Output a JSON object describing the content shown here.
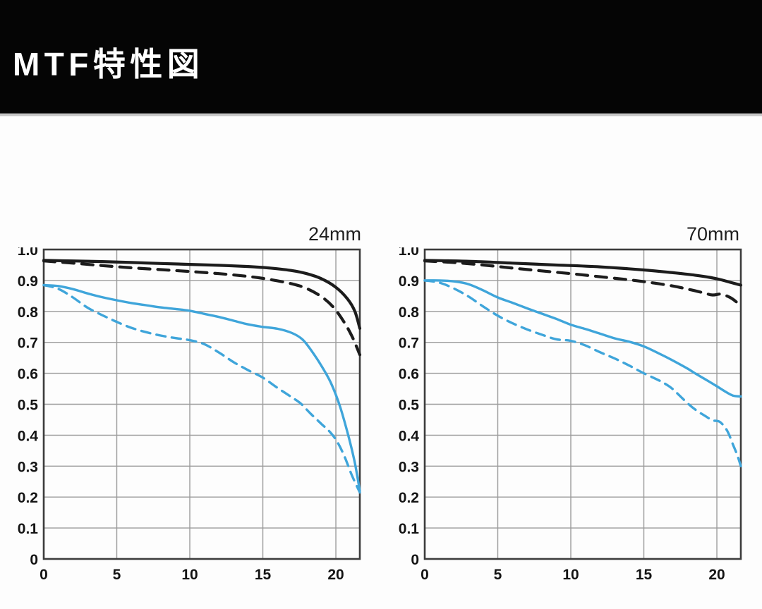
{
  "header": {
    "title": "MTF特性図"
  },
  "colors": {
    "header_bg": "#050505",
    "header_fg": "#ffffff",
    "grid": "#9b9b9b",
    "plot_border": "#3d3d3d",
    "black_curve": "#1c1c1c",
    "blue_curve": "#3fa5da"
  },
  "chart_data": [
    {
      "type": "line",
      "title": "24mm",
      "xlabel": "",
      "ylabel": "",
      "xlim": [
        0,
        21.64
      ],
      "ylim": [
        0,
        1.0
      ],
      "grid": true,
      "x_ticks": [
        0,
        5,
        10,
        15,
        20
      ],
      "x_tick_labels": [
        "0",
        "5",
        "10",
        "15",
        "20"
      ],
      "y_ticks": [
        0,
        0.1,
        0.2,
        0.3,
        0.4,
        0.5,
        0.6,
        0.7,
        0.8,
        0.9,
        1.0
      ],
      "y_tick_labels": [
        "0",
        "0.1",
        "0.2",
        "0.3",
        "0.4",
        "0.5",
        "0.6",
        "0.7",
        "0.8",
        "0.9",
        "1.0"
      ],
      "series": [
        {
          "name": "black-solid",
          "color": "#1c1c1c",
          "dash": "solid",
          "stroke_width": 4.2,
          "points": [
            [
              0,
              0.965
            ],
            [
              2,
              0.963
            ],
            [
              4,
              0.961
            ],
            [
              6,
              0.958
            ],
            [
              8,
              0.955
            ],
            [
              10,
              0.952
            ],
            [
              12,
              0.949
            ],
            [
              14,
              0.945
            ],
            [
              15.5,
              0.94
            ],
            [
              17,
              0.932
            ],
            [
              18,
              0.922
            ],
            [
              19,
              0.906
            ],
            [
              20,
              0.878
            ],
            [
              20.8,
              0.84
            ],
            [
              21.3,
              0.8
            ],
            [
              21.64,
              0.745
            ]
          ]
        },
        {
          "name": "black-dashed",
          "color": "#1c1c1c",
          "dash": "dashed",
          "stroke_width": 4.2,
          "points": [
            [
              0,
              0.963
            ],
            [
              2,
              0.956
            ],
            [
              4,
              0.948
            ],
            [
              6,
              0.941
            ],
            [
              8,
              0.935
            ],
            [
              10,
              0.929
            ],
            [
              12,
              0.922
            ],
            [
              14,
              0.913
            ],
            [
              15.5,
              0.903
            ],
            [
              17,
              0.889
            ],
            [
              18,
              0.874
            ],
            [
              19,
              0.848
            ],
            [
              19.8,
              0.815
            ],
            [
              20.5,
              0.77
            ],
            [
              21.1,
              0.72
            ],
            [
              21.64,
              0.66
            ]
          ]
        },
        {
          "name": "blue-solid",
          "color": "#3fa5da",
          "dash": "solid",
          "stroke_width": 3.4,
          "points": [
            [
              0,
              0.885
            ],
            [
              1,
              0.882
            ],
            [
              2,
              0.872
            ],
            [
              3,
              0.858
            ],
            [
              4,
              0.846
            ],
            [
              5,
              0.836
            ],
            [
              6,
              0.827
            ],
            [
              7,
              0.82
            ],
            [
              8,
              0.813
            ],
            [
              9,
              0.808
            ],
            [
              10,
              0.802
            ],
            [
              11,
              0.792
            ],
            [
              12,
              0.782
            ],
            [
              13,
              0.77
            ],
            [
              14,
              0.758
            ],
            [
              15,
              0.75
            ],
            [
              16,
              0.744
            ],
            [
              17,
              0.73
            ],
            [
              17.7,
              0.71
            ],
            [
              18.3,
              0.675
            ],
            [
              19,
              0.625
            ],
            [
              19.7,
              0.565
            ],
            [
              20.3,
              0.49
            ],
            [
              20.9,
              0.39
            ],
            [
              21.3,
              0.31
            ],
            [
              21.64,
              0.22
            ]
          ]
        },
        {
          "name": "blue-dashed",
          "color": "#3fa5da",
          "dash": "dashed",
          "stroke_width": 3.4,
          "points": [
            [
              0,
              0.885
            ],
            [
              1,
              0.873
            ],
            [
              2,
              0.845
            ],
            [
              3,
              0.812
            ],
            [
              4,
              0.788
            ],
            [
              5,
              0.766
            ],
            [
              6,
              0.747
            ],
            [
              7,
              0.733
            ],
            [
              8,
              0.722
            ],
            [
              9,
              0.714
            ],
            [
              10,
              0.707
            ],
            [
              11,
              0.694
            ],
            [
              12,
              0.667
            ],
            [
              13,
              0.636
            ],
            [
              14,
              0.61
            ],
            [
              15,
              0.586
            ],
            [
              16,
              0.553
            ],
            [
              17,
              0.522
            ],
            [
              17.6,
              0.502
            ],
            [
              18.3,
              0.468
            ],
            [
              19,
              0.437
            ],
            [
              19.6,
              0.41
            ],
            [
              20.1,
              0.378
            ],
            [
              20.6,
              0.33
            ],
            [
              21.1,
              0.27
            ],
            [
              21.64,
              0.215
            ]
          ]
        }
      ]
    },
    {
      "type": "line",
      "title": "70mm",
      "xlabel": "",
      "ylabel": "",
      "xlim": [
        0,
        21.64
      ],
      "ylim": [
        0,
        1.0
      ],
      "grid": true,
      "x_ticks": [
        0,
        5,
        10,
        15,
        20
      ],
      "x_tick_labels": [
        "0",
        "5",
        "10",
        "15",
        "20"
      ],
      "y_ticks": [
        0,
        0.1,
        0.2,
        0.3,
        0.4,
        0.5,
        0.6,
        0.7,
        0.8,
        0.9,
        1.0
      ],
      "y_tick_labels": [
        "0",
        "0.1",
        "0.2",
        "0.3",
        "0.4",
        "0.5",
        "0.6",
        "0.7",
        "0.8",
        "0.9",
        "1.0"
      ],
      "series": [
        {
          "name": "black-solid",
          "color": "#1c1c1c",
          "dash": "solid",
          "stroke_width": 4.2,
          "points": [
            [
              0,
              0.965
            ],
            [
              3,
              0.962
            ],
            [
              6,
              0.956
            ],
            [
              9,
              0.95
            ],
            [
              12,
              0.944
            ],
            [
              15,
              0.934
            ],
            [
              17,
              0.925
            ],
            [
              18.5,
              0.917
            ],
            [
              19.5,
              0.91
            ],
            [
              20.3,
              0.902
            ],
            [
              21,
              0.893
            ],
            [
              21.64,
              0.885
            ]
          ]
        },
        {
          "name": "black-dashed",
          "color": "#1c1c1c",
          "dash": "dashed",
          "stroke_width": 4.2,
          "points": [
            [
              0,
              0.963
            ],
            [
              2,
              0.958
            ],
            [
              4,
              0.95
            ],
            [
              6,
              0.94
            ],
            [
              8,
              0.931
            ],
            [
              10,
              0.922
            ],
            [
              12,
              0.912
            ],
            [
              14,
              0.902
            ],
            [
              15.5,
              0.893
            ],
            [
              17,
              0.882
            ],
            [
              18,
              0.872
            ],
            [
              19,
              0.861
            ],
            [
              19.7,
              0.853
            ],
            [
              20.3,
              0.856
            ],
            [
              20.9,
              0.845
            ],
            [
              21.3,
              0.832
            ],
            [
              21.64,
              0.815
            ]
          ]
        },
        {
          "name": "blue-solid",
          "color": "#3fa5da",
          "dash": "solid",
          "stroke_width": 3.4,
          "points": [
            [
              0,
              0.9
            ],
            [
              1,
              0.9
            ],
            [
              2,
              0.897
            ],
            [
              3,
              0.888
            ],
            [
              4,
              0.868
            ],
            [
              5,
              0.845
            ],
            [
              6,
              0.828
            ],
            [
              7,
              0.81
            ],
            [
              8,
              0.793
            ],
            [
              9,
              0.776
            ],
            [
              10,
              0.757
            ],
            [
              11,
              0.743
            ],
            [
              12,
              0.728
            ],
            [
              13,
              0.713
            ],
            [
              14,
              0.702
            ],
            [
              15,
              0.687
            ],
            [
              16,
              0.665
            ],
            [
              17,
              0.641
            ],
            [
              18,
              0.615
            ],
            [
              18.5,
              0.6
            ],
            [
              19.3,
              0.578
            ],
            [
              20,
              0.558
            ],
            [
              20.6,
              0.54
            ],
            [
              21.1,
              0.528
            ],
            [
              21.64,
              0.525
            ]
          ]
        },
        {
          "name": "blue-dashed",
          "color": "#3fa5da",
          "dash": "dashed",
          "stroke_width": 3.4,
          "points": [
            [
              0,
              0.9
            ],
            [
              1,
              0.893
            ],
            [
              2,
              0.874
            ],
            [
              3,
              0.848
            ],
            [
              4,
              0.816
            ],
            [
              5,
              0.786
            ],
            [
              6,
              0.762
            ],
            [
              7,
              0.742
            ],
            [
              8,
              0.725
            ],
            [
              9,
              0.71
            ],
            [
              10,
              0.705
            ],
            [
              11,
              0.69
            ],
            [
              12,
              0.668
            ],
            [
              13,
              0.648
            ],
            [
              14,
              0.625
            ],
            [
              15,
              0.6
            ],
            [
              16,
              0.578
            ],
            [
              16.5,
              0.565
            ],
            [
              17,
              0.548
            ],
            [
              18,
              0.503
            ],
            [
              18.6,
              0.48
            ],
            [
              19.2,
              0.462
            ],
            [
              19.7,
              0.448
            ],
            [
              20.2,
              0.443
            ],
            [
              20.7,
              0.415
            ],
            [
              21.1,
              0.37
            ],
            [
              21.4,
              0.335
            ],
            [
              21.64,
              0.3
            ]
          ]
        }
      ]
    }
  ]
}
